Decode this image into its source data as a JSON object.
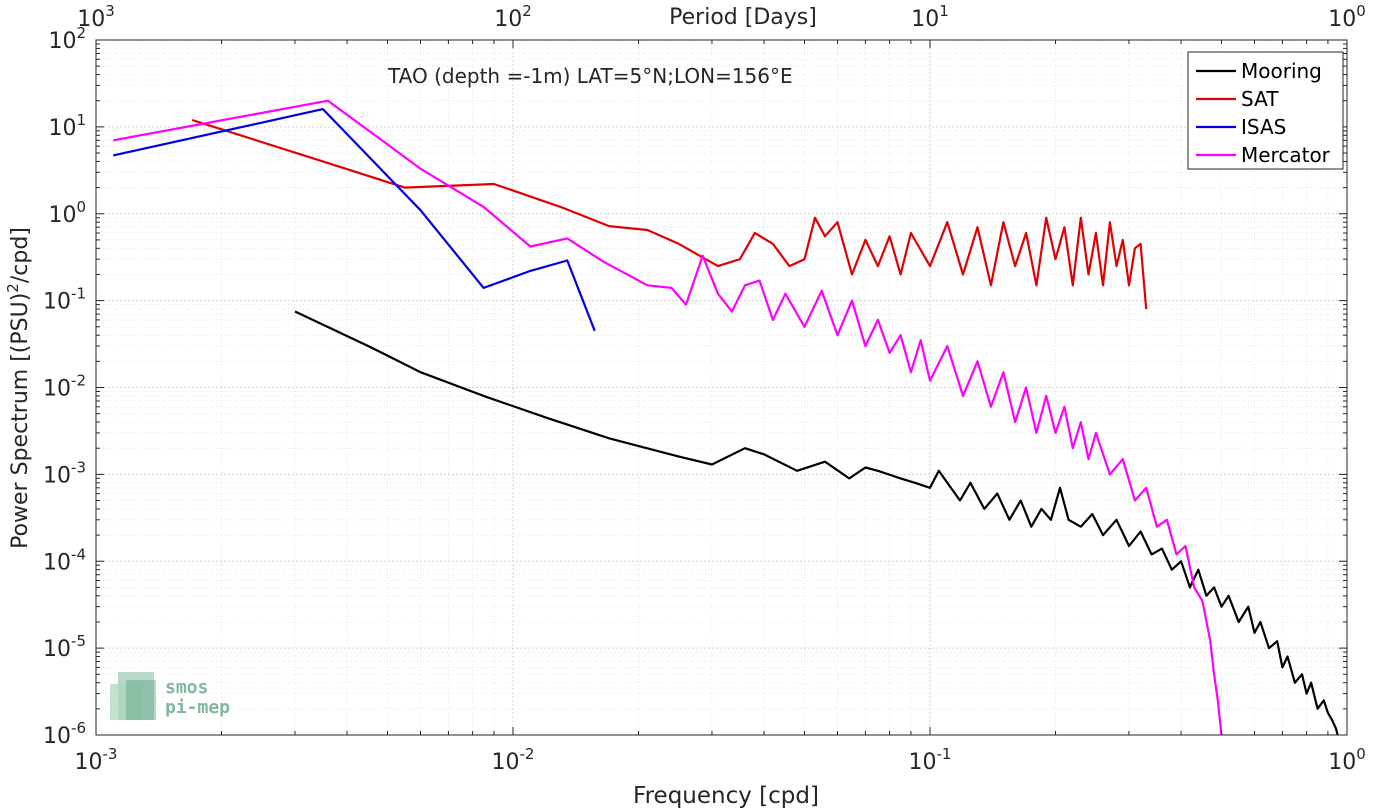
{
  "chart_data": {
    "type": "line",
    "title": "TAO (depth =-1m) LAT=5°N;LON=156°E",
    "xlabel": "Frequency [cpd]",
    "ylabel_main": "Power Spectrum [(PSU)",
    "ylabel_sup": "2",
    "ylabel_tail": "/cpd]",
    "top_xlabel": "Period [Days]",
    "xscale": "log",
    "yscale": "log",
    "xlim": [
      0.001,
      1
    ],
    "ylim": [
      1e-06,
      100
    ],
    "grid": true,
    "legend_position": "top-right",
    "x_ticks": [
      0.001,
      0.01,
      0.1,
      1
    ],
    "x_tick_labels": [
      {
        "base": "10",
        "exp": "-3"
      },
      {
        "base": "10",
        "exp": "-2"
      },
      {
        "base": "10",
        "exp": "-1"
      },
      {
        "base": "10",
        "exp": "0"
      }
    ],
    "y_ticks": [
      1e-06,
      1e-05,
      0.0001,
      0.001,
      0.01,
      0.1,
      1,
      10,
      100
    ],
    "y_tick_labels": [
      {
        "base": "10",
        "exp": "-6"
      },
      {
        "base": "10",
        "exp": "-5"
      },
      {
        "base": "10",
        "exp": "-4"
      },
      {
        "base": "10",
        "exp": "-3"
      },
      {
        "base": "10",
        "exp": "-2"
      },
      {
        "base": "10",
        "exp": "-1"
      },
      {
        "base": "10",
        "exp": "0"
      },
      {
        "base": "10",
        "exp": "1"
      },
      {
        "base": "10",
        "exp": "2"
      }
    ],
    "top_ticks": [
      0.001,
      0.01,
      0.1,
      1
    ],
    "top_tick_labels": [
      {
        "base": "10",
        "exp": "3"
      },
      {
        "base": "10",
        "exp": "2"
      },
      {
        "base": "10",
        "exp": "1"
      },
      {
        "base": "10",
        "exp": "0"
      }
    ],
    "series": [
      {
        "name": "Mooring",
        "color": "#000000",
        "x": [
          0.003,
          0.0045,
          0.006,
          0.0085,
          0.012,
          0.017,
          0.025,
          0.03,
          0.036,
          0.04,
          0.048,
          0.056,
          0.064,
          0.07,
          0.075,
          0.085,
          0.092,
          0.1,
          0.105,
          0.11,
          0.118,
          0.125,
          0.135,
          0.145,
          0.155,
          0.165,
          0.175,
          0.185,
          0.195,
          0.205,
          0.215,
          0.23,
          0.245,
          0.26,
          0.28,
          0.3,
          0.32,
          0.34,
          0.36,
          0.38,
          0.4,
          0.42,
          0.44,
          0.46,
          0.48,
          0.5,
          0.52,
          0.55,
          0.58,
          0.6,
          0.62,
          0.65,
          0.68,
          0.7,
          0.72,
          0.75,
          0.78,
          0.8,
          0.82,
          0.85,
          0.88,
          0.9,
          0.92,
          0.94,
          0.95
        ],
        "y": [
          0.075,
          0.03,
          0.015,
          0.008,
          0.0045,
          0.0026,
          0.0016,
          0.0013,
          0.002,
          0.0017,
          0.0011,
          0.0014,
          0.0009,
          0.0012,
          0.0011,
          0.0009,
          0.0008,
          0.0007,
          0.0011,
          0.0008,
          0.0005,
          0.0008,
          0.0004,
          0.0006,
          0.0003,
          0.0005,
          0.00025,
          0.0004,
          0.0003,
          0.0007,
          0.0003,
          0.00025,
          0.00035,
          0.0002,
          0.0003,
          0.00015,
          0.00022,
          0.00012,
          0.00014,
          8e-05,
          0.0001,
          5e-05,
          8e-05,
          4e-05,
          5e-05,
          3e-05,
          4e-05,
          2e-05,
          3e-05,
          1.5e-05,
          2e-05,
          1e-05,
          1.2e-05,
          6e-06,
          8e-06,
          4e-06,
          5e-06,
          3e-06,
          4e-06,
          2e-06,
          2.5e-06,
          1.8e-06,
          1.5e-06,
          1.2e-06,
          1e-06
        ]
      },
      {
        "name": "SAT",
        "color": "#e00000",
        "x": [
          0.0017,
          0.0035,
          0.0055,
          0.009,
          0.013,
          0.017,
          0.021,
          0.025,
          0.031,
          0.035,
          0.038,
          0.042,
          0.046,
          0.05,
          0.053,
          0.056,
          0.06,
          0.065,
          0.07,
          0.075,
          0.08,
          0.085,
          0.09,
          0.1,
          0.11,
          0.12,
          0.13,
          0.14,
          0.15,
          0.16,
          0.17,
          0.18,
          0.19,
          0.2,
          0.21,
          0.22,
          0.23,
          0.24,
          0.25,
          0.26,
          0.27,
          0.28,
          0.29,
          0.3,
          0.31,
          0.32,
          0.33
        ],
        "y": [
          12,
          4,
          2.0,
          2.2,
          1.2,
          0.72,
          0.65,
          0.45,
          0.25,
          0.3,
          0.6,
          0.45,
          0.25,
          0.3,
          0.9,
          0.55,
          0.8,
          0.2,
          0.5,
          0.25,
          0.55,
          0.2,
          0.6,
          0.25,
          0.8,
          0.2,
          0.7,
          0.15,
          0.8,
          0.25,
          0.6,
          0.15,
          0.9,
          0.3,
          0.7,
          0.15,
          0.9,
          0.2,
          0.6,
          0.15,
          0.8,
          0.25,
          0.5,
          0.15,
          0.4,
          0.45,
          0.08
        ]
      },
      {
        "name": "ISAS",
        "color": "#0000e0",
        "x": [
          0.0011,
          0.0035,
          0.006,
          0.0085,
          0.011,
          0.0135,
          0.0157
        ],
        "y": [
          4.7,
          16,
          1.1,
          0.14,
          0.22,
          0.29,
          0.045
        ]
      },
      {
        "name": "Mercator",
        "color": "#ff00ff",
        "x": [
          0.0011,
          0.0036,
          0.006,
          0.0085,
          0.011,
          0.0135,
          0.0165,
          0.021,
          0.024,
          0.026,
          0.0285,
          0.031,
          0.0335,
          0.036,
          0.039,
          0.042,
          0.045,
          0.05,
          0.055,
          0.06,
          0.065,
          0.07,
          0.075,
          0.08,
          0.085,
          0.09,
          0.095,
          0.1,
          0.11,
          0.12,
          0.13,
          0.14,
          0.15,
          0.16,
          0.17,
          0.18,
          0.19,
          0.2,
          0.21,
          0.22,
          0.23,
          0.24,
          0.25,
          0.27,
          0.29,
          0.31,
          0.33,
          0.35,
          0.37,
          0.39,
          0.41,
          0.43,
          0.45,
          0.47,
          0.48,
          0.49,
          0.5
        ],
        "y": [
          7.0,
          20,
          3.3,
          1.2,
          0.42,
          0.52,
          0.28,
          0.15,
          0.14,
          0.09,
          0.33,
          0.12,
          0.075,
          0.15,
          0.17,
          0.06,
          0.12,
          0.05,
          0.13,
          0.04,
          0.1,
          0.03,
          0.06,
          0.025,
          0.04,
          0.015,
          0.035,
          0.012,
          0.03,
          0.008,
          0.02,
          0.006,
          0.015,
          0.004,
          0.01,
          0.003,
          0.008,
          0.003,
          0.006,
          0.002,
          0.004,
          0.0015,
          0.003,
          0.001,
          0.0015,
          0.0005,
          0.0007,
          0.00025,
          0.0003,
          0.00012,
          0.00015,
          5e-05,
          3.5e-05,
          1.2e-05,
          5e-06,
          2.5e-06,
          1e-06
        ]
      }
    ]
  },
  "logo": {
    "line1": "smos",
    "line2": "pi-mep",
    "color": "#7fb89a"
  }
}
